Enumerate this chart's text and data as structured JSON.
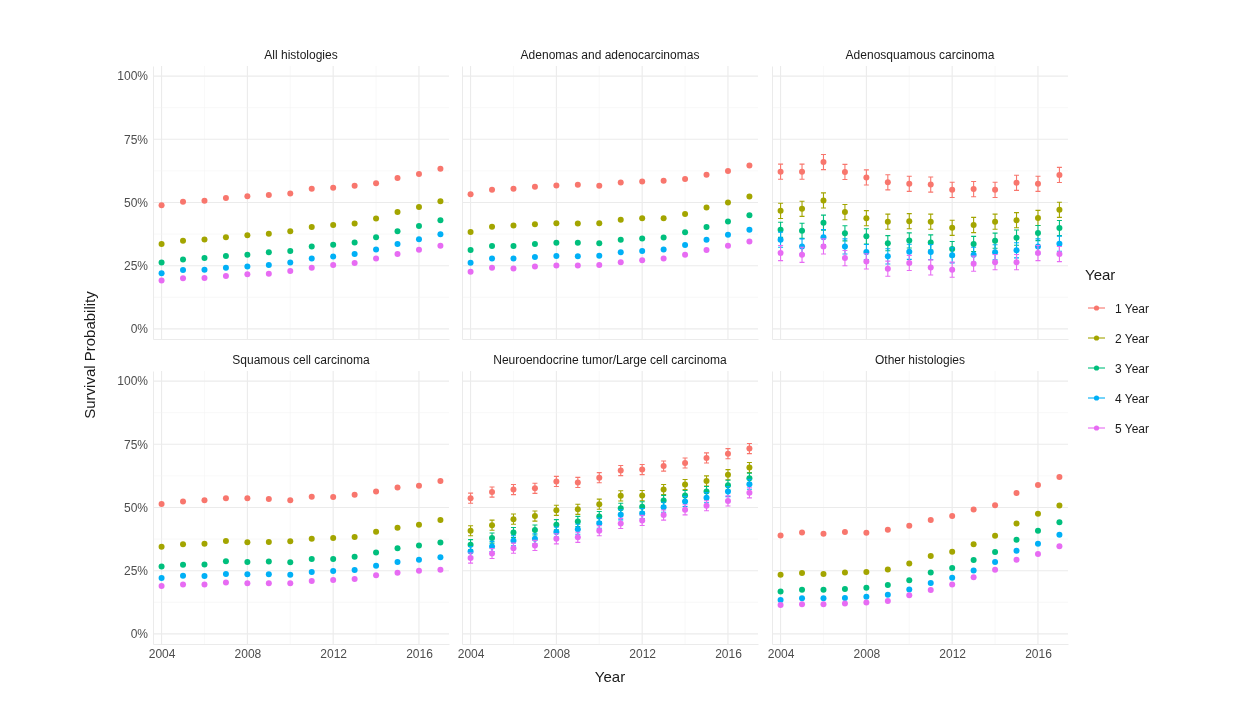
{
  "chart_data": [
    {
      "type": "scatter",
      "title": "All histologies",
      "ylabel": "Survival Probability",
      "x": [
        2004,
        2005,
        2006,
        2007,
        2008,
        2009,
        2010,
        2011,
        2012,
        2013,
        2014,
        2015,
        2016,
        2017
      ],
      "xlim": [
        2003.6,
        2017.4
      ],
      "xticks": [
        2004,
        2008,
        2012,
        2016
      ],
      "ylim": [
        -4,
        104
      ],
      "yticks": [
        {
          "value": 0,
          "label": "0%"
        },
        {
          "value": 25,
          "label": "25%"
        },
        {
          "value": 50,
          "label": "50%"
        },
        {
          "value": 75,
          "label": "75%"
        },
        {
          "value": 100,
          "label": "100%"
        }
      ],
      "grid": true,
      "marker": "circle",
      "tick_labels": "y",
      "series": [
        {
          "color": "#f8766d",
          "values": [
            48.9,
            50.3,
            50.7,
            51.8,
            52.5,
            53,
            53.6,
            55.4,
            55.8,
            56.6,
            57.6,
            59.7,
            61.3,
            63.4
          ]
        },
        {
          "color": "#a3a500",
          "values": [
            33.6,
            34.9,
            35.4,
            36.3,
            37,
            37.6,
            38.6,
            40.3,
            41.1,
            41.7,
            43.7,
            46.2,
            48.2,
            50.5
          ]
        },
        {
          "color": "#00bf7d",
          "values": [
            26.3,
            27.5,
            28,
            28.8,
            29.3,
            30.3,
            30.8,
            32.6,
            33.3,
            34.2,
            36.3,
            38.6,
            40.7,
            43
          ]
        },
        {
          "color": "#00b0f6",
          "values": [
            22,
            23.3,
            23.4,
            24.2,
            24.7,
            25.3,
            26.3,
            27.8,
            28.6,
            29.6,
            31.4,
            33.6,
            35.5,
            37.4
          ]
        },
        {
          "color": "#e76bf3",
          "values": [
            19.1,
            20,
            20.1,
            20.9,
            21.6,
            21.8,
            22.9,
            24.2,
            25.3,
            26.1,
            27.8,
            29.6,
            31.3,
            32.9
          ]
        }
      ]
    },
    {
      "type": "scatter",
      "title": "Adenomas and adenocarcinomas",
      "x": [
        2004,
        2005,
        2006,
        2007,
        2008,
        2009,
        2010,
        2011,
        2012,
        2013,
        2014,
        2015,
        2016,
        2017
      ],
      "xlim": [
        2003.6,
        2017.4
      ],
      "xticks": [
        2004,
        2008,
        2012,
        2016
      ],
      "ylim": [
        -4,
        104
      ],
      "yticks": [
        {
          "value": 0,
          "label": null
        },
        {
          "value": 25,
          "label": null
        },
        {
          "value": 50,
          "label": null
        },
        {
          "value": 75,
          "label": null
        },
        {
          "value": 100,
          "label": null
        }
      ],
      "grid": true,
      "marker": "circle",
      "tick_labels": false,
      "series": [
        {
          "color": "#f8766d",
          "values": [
            53.3,
            55,
            55.4,
            56.2,
            56.7,
            57,
            56.6,
            57.9,
            58.3,
            58.6,
            59.3,
            61,
            62.5,
            64.6
          ]
        },
        {
          "color": "#a3a500",
          "values": [
            38.3,
            40.4,
            40.9,
            41.4,
            41.8,
            41.7,
            41.8,
            43.2,
            43.8,
            43.8,
            45.5,
            48,
            50,
            52.4
          ]
        },
        {
          "color": "#00bf7d",
          "values": [
            31.2,
            32.8,
            32.8,
            33.6,
            34.1,
            34.1,
            33.9,
            35.3,
            35.8,
            36.2,
            38.2,
            40.3,
            42.5,
            45
          ]
        },
        {
          "color": "#00b0f6",
          "values": [
            26.2,
            27.8,
            27.8,
            28.4,
            28.8,
            28.7,
            28.9,
            30.3,
            30.8,
            31.4,
            33.2,
            35.3,
            37.2,
            39.2
          ]
        },
        {
          "color": "#e76bf3",
          "values": [
            22.6,
            24.2,
            23.9,
            24.7,
            25.1,
            25.1,
            25.3,
            26.4,
            27.2,
            27.8,
            29.3,
            31.2,
            32.9,
            34.6
          ]
        }
      ]
    },
    {
      "type": "scatter",
      "title": "Adenosquamous carcinoma",
      "legend_title": "Year",
      "legend": "right",
      "x": [
        2004,
        2005,
        2006,
        2007,
        2008,
        2009,
        2010,
        2011,
        2012,
        2013,
        2014,
        2015,
        2016,
        2017
      ],
      "xlim": [
        2003.6,
        2017.4
      ],
      "xticks": [
        2004,
        2008,
        2012,
        2016
      ],
      "ylim": [
        -4,
        104
      ],
      "yticks": [
        {
          "value": 0,
          "label": null
        },
        {
          "value": 25,
          "label": null
        },
        {
          "value": 50,
          "label": null
        },
        {
          "value": 75,
          "label": null
        },
        {
          "value": 100,
          "label": null
        }
      ],
      "grid": true,
      "marker": "circle",
      "tick_labels": false,
      "series": [
        {
          "name": "1 Year",
          "color": "#f8766d",
          "values": [
            62.2,
            62.2,
            66,
            62.1,
            59.9,
            58,
            57.4,
            57.1,
            55,
            55.3,
            55,
            57.8,
            57.4,
            60.9
          ],
          "errors": [
            3,
            3,
            3,
            3,
            3,
            3,
            3,
            3,
            3,
            3,
            3,
            3,
            3,
            3
          ]
        },
        {
          "name": "2 Year",
          "color": "#a3a500",
          "values": [
            46.7,
            47.5,
            50.8,
            46.2,
            43.8,
            42.4,
            42.6,
            42.4,
            40,
            41.1,
            42.4,
            43,
            43.9,
            47.1
          ],
          "errors": [
            3,
            3,
            3,
            3,
            3,
            3,
            3,
            3,
            3,
            3,
            3,
            3,
            3,
            3
          ]
        },
        {
          "name": "3 Year",
          "color": "#00bf7d",
          "values": [
            39.2,
            38.8,
            42,
            37.8,
            36.6,
            33.9,
            35,
            34.2,
            31.6,
            33.6,
            34.9,
            36.1,
            37.9,
            39.9
          ],
          "errors": [
            3,
            3,
            3,
            3,
            3,
            3,
            3,
            3,
            3,
            3,
            3,
            3,
            3,
            3
          ]
        },
        {
          "name": "4 Year",
          "color": "#00b0f6",
          "values": [
            35.3,
            32.6,
            36.3,
            32.6,
            30.4,
            28.7,
            30.5,
            30.4,
            29.1,
            29.3,
            30.3,
            31.1,
            32.6,
            33.7
          ],
          "errors": [
            3,
            3,
            3,
            3,
            3,
            3,
            3,
            3,
            3,
            3,
            3,
            3,
            3,
            3
          ]
        },
        {
          "name": "5 Year",
          "color": "#e76bf3",
          "values": [
            30,
            29.3,
            32.6,
            28,
            26.7,
            23.8,
            26.1,
            24.3,
            23.4,
            25.8,
            26.4,
            26.4,
            30,
            29.6
          ],
          "errors": [
            3,
            3,
            3,
            3,
            3,
            3,
            3,
            3,
            3,
            3,
            3,
            3,
            3,
            3
          ]
        }
      ]
    },
    {
      "type": "scatter",
      "title": "Squamous cell carcinoma",
      "x": [
        2004,
        2005,
        2006,
        2007,
        2008,
        2009,
        2010,
        2011,
        2012,
        2013,
        2014,
        2015,
        2016,
        2017
      ],
      "xlim": [
        2003.6,
        2017.4
      ],
      "xticks": [
        2004,
        2008,
        2012,
        2016
      ],
      "ylim": [
        -4,
        104
      ],
      "yticks": [
        {
          "value": 0,
          "label": "0%"
        },
        {
          "value": 25,
          "label": "25%"
        },
        {
          "value": 50,
          "label": "50%"
        },
        {
          "value": 75,
          "label": "75%"
        },
        {
          "value": 100,
          "label": "100%"
        }
      ],
      "grid": true,
      "marker": "circle",
      "series": [
        {
          "color": "#f8766d",
          "values": [
            51.4,
            52.4,
            52.9,
            53.7,
            53.7,
            53.4,
            52.9,
            54.3,
            54.2,
            55,
            56.3,
            57.9,
            58.6,
            60.5
          ]
        },
        {
          "color": "#a3a500",
          "values": [
            34.5,
            35.5,
            35.7,
            36.7,
            36.3,
            36.4,
            36.6,
            37.6,
            37.9,
            38.3,
            40.4,
            42,
            43.2,
            45.1
          ]
        },
        {
          "color": "#00bf7d",
          "values": [
            26.7,
            27.4,
            27.5,
            28.7,
            28.4,
            28.6,
            28.3,
            29.6,
            29.6,
            30.5,
            32.2,
            33.9,
            35,
            36.2
          ]
        },
        {
          "color": "#00b0f6",
          "values": [
            22.1,
            23,
            22.9,
            23.7,
            23.6,
            23.6,
            23.4,
            24.5,
            24.9,
            25.3,
            27,
            28.4,
            29.3,
            30.3
          ]
        },
        {
          "color": "#e76bf3",
          "values": [
            18.9,
            19.5,
            19.5,
            20.3,
            20,
            20,
            20,
            20.9,
            21.3,
            21.7,
            23.2,
            24.2,
            25,
            25.4
          ]
        }
      ]
    },
    {
      "type": "scatter",
      "title": "Neuroendocrine tumor/Large cell carcinoma",
      "xlabel": "Year",
      "x": [
        2004,
        2005,
        2006,
        2007,
        2008,
        2009,
        2010,
        2011,
        2012,
        2013,
        2014,
        2015,
        2016,
        2017
      ],
      "xlim": [
        2003.6,
        2017.4
      ],
      "xticks": [
        2004,
        2008,
        2012,
        2016
      ],
      "ylim": [
        -4,
        104
      ],
      "yticks": [
        {
          "value": 0,
          "label": null
        },
        {
          "value": 25,
          "label": null
        },
        {
          "value": 50,
          "label": null
        },
        {
          "value": 75,
          "label": null
        },
        {
          "value": 100,
          "label": null
        }
      ],
      "grid": true,
      "marker": "circle",
      "tick_labels": "x",
      "series": [
        {
          "color": "#f8766d",
          "values": [
            53.7,
            56.1,
            57.1,
            57.6,
            60.3,
            59.9,
            61.8,
            64.6,
            65,
            66.4,
            67.6,
            69.6,
            71.3,
            73.3
          ],
          "errors": [
            2,
            2,
            2,
            2,
            2,
            2,
            2,
            2,
            2,
            2,
            2,
            2,
            2,
            2
          ]
        },
        {
          "color": "#a3a500",
          "values": [
            40.8,
            43,
            45.4,
            46.6,
            48.9,
            49.3,
            51.3,
            54.6,
            54.7,
            57.1,
            59.1,
            60.5,
            63,
            65.8
          ],
          "errors": [
            2,
            2,
            2,
            2,
            2,
            2,
            2,
            2,
            2,
            2,
            2,
            2,
            2,
            2
          ]
        },
        {
          "color": "#00bf7d",
          "values": [
            35.3,
            37.9,
            40.1,
            41.1,
            43.2,
            44.5,
            46.4,
            49.7,
            50.3,
            52.8,
            54.7,
            56.3,
            58.8,
            61.6
          ],
          "errors": [
            2,
            2,
            2,
            2,
            2,
            2,
            2,
            2,
            2,
            2,
            2,
            2,
            2,
            2
          ]
        },
        {
          "color": "#00b0f6",
          "values": [
            32.6,
            34.6,
            36.8,
            37.6,
            40.3,
            41.4,
            43.8,
            47.1,
            47.6,
            50.1,
            52.4,
            53.9,
            56.3,
            59.2
          ],
          "errors": [
            2,
            2,
            2,
            2,
            2,
            2,
            2,
            2,
            2,
            2,
            2,
            2,
            2,
            2
          ]
        },
        {
          "color": "#e76bf3",
          "values": [
            30,
            31.8,
            33.9,
            35,
            37.6,
            38.2,
            40.8,
            43.7,
            44.9,
            47,
            49.1,
            50.7,
            52.6,
            55.8
          ],
          "errors": [
            2,
            2,
            2,
            2,
            2,
            2,
            2,
            2,
            2,
            2,
            2,
            2,
            2,
            2
          ]
        }
      ]
    },
    {
      "type": "scatter",
      "title": "Other histologies",
      "x": [
        2004,
        2005,
        2006,
        2007,
        2008,
        2009,
        2010,
        2011,
        2012,
        2013,
        2014,
        2015,
        2016,
        2017
      ],
      "xlim": [
        2003.6,
        2017.4
      ],
      "xticks": [
        2004,
        2008,
        2012,
        2016
      ],
      "ylim": [
        -4,
        104
      ],
      "yticks": [
        {
          "value": 0,
          "label": null
        },
        {
          "value": 25,
          "label": null
        },
        {
          "value": 50,
          "label": null
        },
        {
          "value": 75,
          "label": null
        },
        {
          "value": 100,
          "label": null
        }
      ],
      "grid": true,
      "marker": "circle",
      "tick_labels": "x",
      "series": [
        {
          "color": "#f8766d",
          "values": [
            38.9,
            40.1,
            39.6,
            40.3,
            40,
            41.2,
            42.8,
            45.1,
            46.6,
            49.2,
            50.9,
            55.7,
            58.9,
            62.1
          ]
        },
        {
          "color": "#a3a500",
          "values": [
            23.4,
            24.1,
            23.7,
            24.3,
            24.5,
            25.5,
            27.8,
            30.8,
            32.5,
            35.5,
            38.8,
            43.7,
            47.5,
            50.8
          ]
        },
        {
          "color": "#00bf7d",
          "values": [
            16.8,
            17.5,
            17.5,
            17.8,
            18.3,
            19.3,
            21.2,
            24.3,
            26.1,
            29.2,
            32.4,
            37.2,
            40.8,
            44.2
          ]
        },
        {
          "color": "#00b0f6",
          "values": [
            13.4,
            14.1,
            14.1,
            14.2,
            14.7,
            15.5,
            17.6,
            20.1,
            22.2,
            25.1,
            28.4,
            32.9,
            35.7,
            39.2
          ]
        },
        {
          "color": "#e76bf3",
          "values": [
            11.4,
            11.7,
            11.7,
            12,
            12.4,
            13,
            15.3,
            17.4,
            19.5,
            22.4,
            25.4,
            29.3,
            31.6,
            34.7
          ]
        }
      ]
    }
  ]
}
